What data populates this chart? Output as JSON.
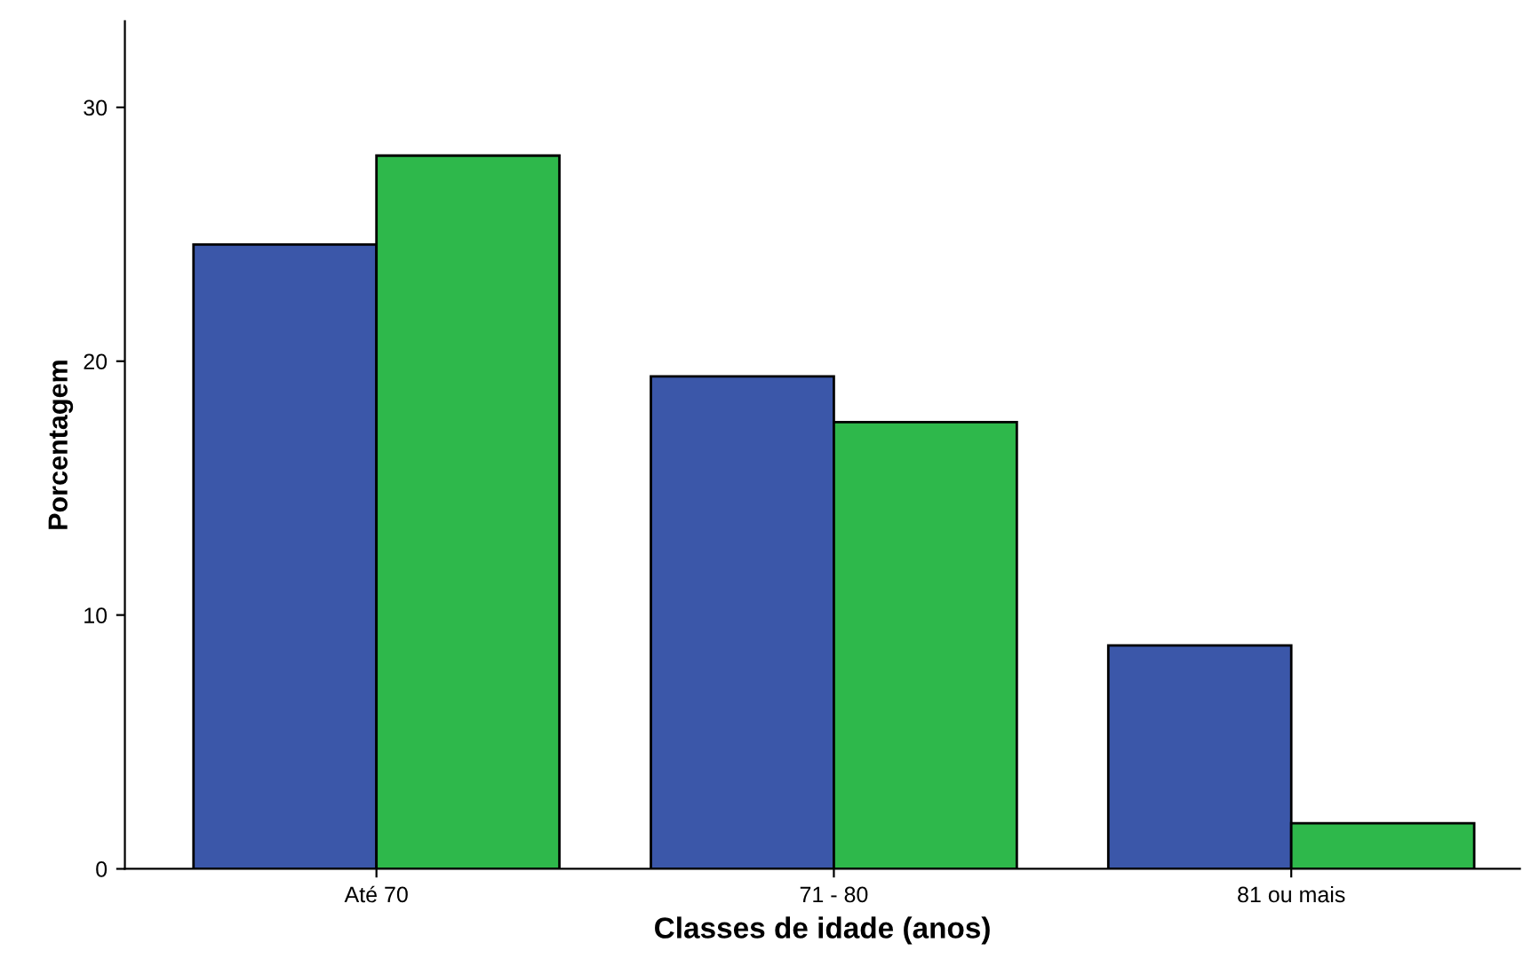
{
  "chart_data": {
    "type": "bar",
    "xlabel": "Classes de idade (anos)",
    "ylabel": "Porcentagem",
    "categories": [
      "Até 70",
      "71 - 80",
      "81 ou mais"
    ],
    "series": [
      {
        "color": "#3b57a9",
        "values": [
          24.6,
          19.4,
          8.8
        ]
      },
      {
        "color": "#2eb84b",
        "values": [
          28.1,
          17.6,
          1.8
        ]
      }
    ],
    "ylim": [
      0,
      33.4
    ],
    "yticks": [
      0,
      10,
      20,
      30
    ],
    "grid": false,
    "legend": false
  }
}
